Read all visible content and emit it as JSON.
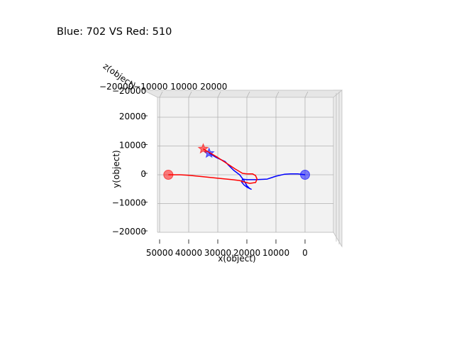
{
  "chart_data": {
    "type": "line",
    "title": "Blue: 702 VS Red: 510",
    "xlabel": "x(object)",
    "ylabel": "y(object)",
    "zlabel": "z(object)",
    "xlim": [
      -12000,
      55000
    ],
    "ylim": [
      -20000,
      27000
    ],
    "x_ticks": [
      50000,
      40000,
      30000,
      20000,
      10000,
      0
    ],
    "x_tick_labels": [
      "50000",
      "40000",
      "30000",
      "20000",
      "10000",
      "0"
    ],
    "y_ticks": [
      20000,
      10000,
      0,
      -10000,
      -20000
    ],
    "y_tick_labels": [
      "20000",
      "10000",
      "0",
      "−10000",
      "−20000"
    ],
    "z_tick_labels_overlapping": "−20000−10000 10000 20000",
    "grid": true,
    "series": [
      {
        "color": "#0000ff",
        "start_marker": "circle",
        "end_marker": "star",
        "x": [
          0,
          2500,
          5000,
          7000,
          10000,
          13000,
          17000,
          20000,
          21500,
          21800,
          21000,
          20000,
          19000,
          18500,
          19000,
          20000,
          21000,
          22500,
          24500,
          26500,
          27500,
          30500,
          33000
        ],
        "y": [
          0,
          300,
          300,
          200,
          -500,
          -1500,
          -1700,
          -1700,
          -1500,
          -2500,
          -3500,
          -4300,
          -4800,
          -5000,
          -4800,
          -3800,
          -2000,
          0,
          1500,
          3500,
          4600,
          6000,
          7500
        ]
      },
      {
        "color": "#ff0000",
        "start_marker": "circle",
        "end_marker": "star",
        "x": [
          47000,
          43000,
          40000,
          35000,
          30000,
          25000,
          22500,
          21000,
          19000,
          17000,
          16500,
          17000,
          18000,
          20000,
          21500,
          24000,
          27000,
          30000,
          32500,
          35000
        ],
        "y": [
          0,
          0,
          -200,
          -700,
          -1200,
          -1700,
          -2000,
          -2500,
          -3000,
          -2700,
          -1500,
          -300,
          300,
          300,
          500,
          2000,
          4000,
          6000,
          7500,
          9000
        ]
      }
    ]
  }
}
